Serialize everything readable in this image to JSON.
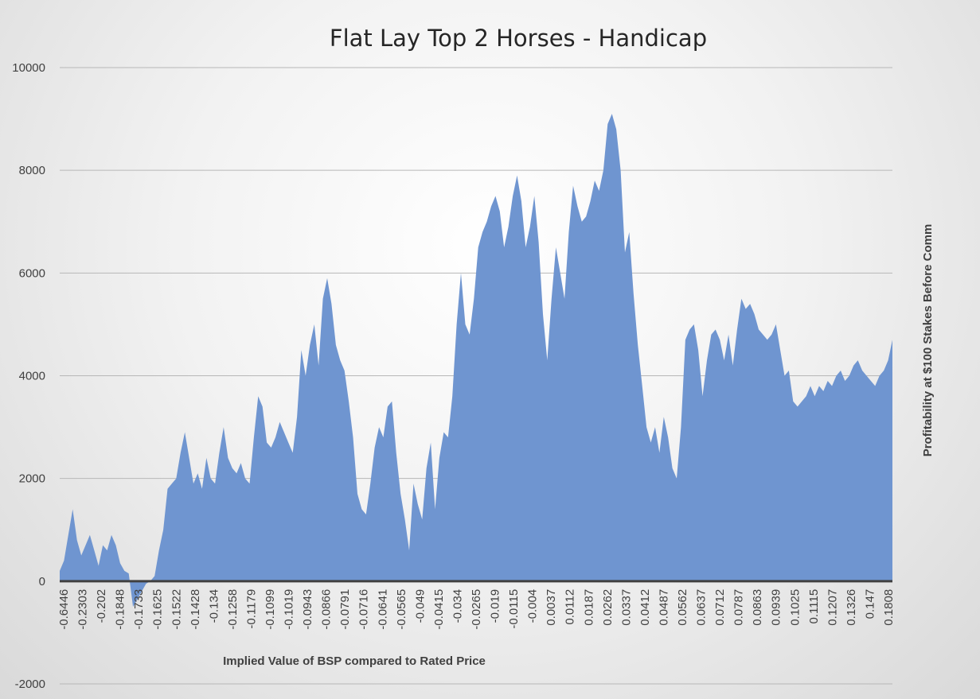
{
  "chart_data": {
    "type": "area",
    "title": "Flat Lay Top 2 Horses - Handicap",
    "xlabel": "Implied Value of BSP compared to Rated Price",
    "ylabel": "Profitability at $100 Stakes Before Comm",
    "ylim": [
      -2000,
      10000
    ],
    "yticks": [
      10000,
      8000,
      6000,
      4000,
      2000,
      0,
      -2000
    ],
    "grid": true,
    "legend": "none",
    "color": "#6f95d0",
    "x_ticks": [
      "-0.6446",
      "-0.2303",
      "-0.202",
      "-0.1848",
      "-0.1733",
      "-0.1625",
      "-0.1522",
      "-0.1428",
      "-0.134",
      "-0.1258",
      "-0.1179",
      "-0.1099",
      "-0.1019",
      "-0.0943",
      "-0.0866",
      "-0.0791",
      "-0.0716",
      "-0.0641",
      "-0.0565",
      "-0.049",
      "-0.0415",
      "-0.034",
      "-0.0265",
      "-0.019",
      "-0.0115",
      "-0.004",
      "0.0037",
      "0.0112",
      "0.0187",
      "0.0262",
      "0.0337",
      "0.0412",
      "0.0487",
      "0.0562",
      "0.0637",
      "0.0712",
      "0.0787",
      "0.0863",
      "0.0939",
      "0.1025",
      "0.1115",
      "0.1207",
      "0.1326",
      "0.147",
      "0.1808"
    ],
    "series": [
      {
        "values": [
          200,
          400,
          900,
          1400,
          800,
          500,
          700,
          900,
          600,
          300,
          700,
          600,
          900,
          700,
          350,
          200,
          150,
          -500,
          -350,
          -200,
          -50,
          0,
          100,
          600,
          1000,
          1800,
          1900,
          2000,
          2500,
          2900,
          2400,
          1900,
          2100,
          1800,
          2400,
          2000,
          1900,
          2500,
          3000,
          2400,
          2200,
          2100,
          2300,
          2000,
          1900,
          2800,
          3600,
          3400,
          2700,
          2600,
          2800,
          3100,
          2900,
          2700,
          2500,
          3200,
          4500,
          4000,
          4600,
          5000,
          4200,
          5500,
          5900,
          5400,
          4600,
          4300,
          4100,
          3500,
          2800,
          1700,
          1400,
          1300,
          1900,
          2600,
          3000,
          2800,
          3400,
          3500,
          2500,
          1700,
          1200,
          600,
          1900,
          1500,
          1200,
          2200,
          2700,
          1400,
          2400,
          2900,
          2800,
          3600,
          5000,
          6000,
          5000,
          4800,
          5500,
          6500,
          6800,
          7000,
          7300,
          7500,
          7200,
          6500,
          6900,
          7500,
          7900,
          7400,
          6500,
          6900,
          7500,
          6600,
          5200,
          4300,
          5500,
          6500,
          6000,
          5500,
          6800,
          7700,
          7300,
          7000,
          7100,
          7400,
          7800,
          7600,
          8000,
          8900,
          9100,
          8800,
          8000,
          6400,
          6800,
          5600,
          4600,
          3800,
          3000,
          2700,
          3000,
          2500,
          3200,
          2800,
          2200,
          2000,
          3000,
          4700,
          4900,
          5000,
          4500,
          3600,
          4300,
          4800,
          4900,
          4700,
          4300,
          4800,
          4200,
          4900,
          5500,
          5300,
          5400,
          5200,
          4900,
          4800,
          4700,
          4800,
          5000,
          4500,
          4000,
          4100,
          3500,
          3400,
          3500,
          3600,
          3800,
          3600,
          3800,
          3700,
          3900,
          3800,
          4000,
          4100,
          3900,
          4000,
          4200,
          4300,
          4100,
          4000,
          3900,
          3800,
          4000,
          4100,
          4300,
          4700
        ]
      }
    ]
  }
}
